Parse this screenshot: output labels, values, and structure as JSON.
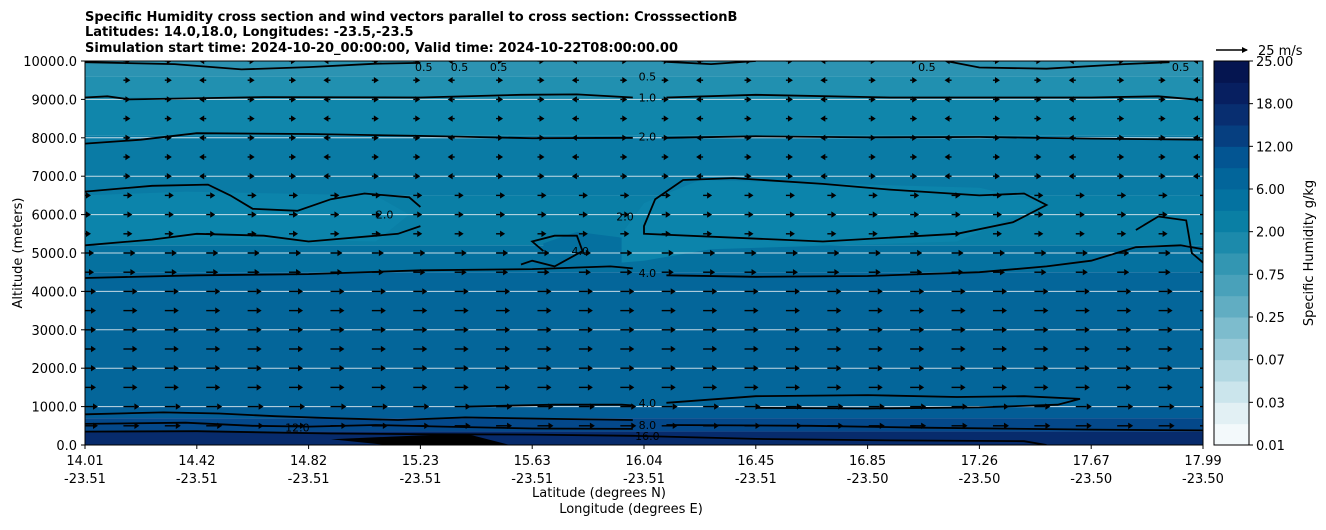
{
  "chart_data": {
    "type": "filled-contour",
    "title_lines": [
      "Specific Humidity cross section and wind vectors parallel to cross section: CrosssectionB",
      "Latitudes: 14.0,18.0, Longitudes: -23.5,-23.5",
      "Simulation start time: 2024-10-20_00:00:00, Valid time: 2024-10-22T08:00:00.00"
    ],
    "ylabel": "Altitude (meters)",
    "xlabel_lat": "Latitude (degrees N)",
    "xlabel_lon": "Longitude (degrees E)",
    "ylim": [
      0,
      10000
    ],
    "yticks": [
      0,
      1000,
      2000,
      3000,
      4000,
      5000,
      6000,
      7000,
      8000,
      9000,
      10000
    ],
    "ytick_labels": [
      "0.0",
      "1000.0",
      "2000.0",
      "3000.0",
      "4000.0",
      "5000.0",
      "6000.0",
      "7000.0",
      "8000.0",
      "9000.0",
      "10000.0"
    ],
    "xticks": [
      {
        "lat": "14.01",
        "lon": "-23.51"
      },
      {
        "lat": "14.42",
        "lon": "-23.51"
      },
      {
        "lat": "14.82",
        "lon": "-23.51"
      },
      {
        "lat": "15.23",
        "lon": "-23.51"
      },
      {
        "lat": "15.63",
        "lon": "-23.51"
      },
      {
        "lat": "16.04",
        "lon": "-23.51"
      },
      {
        "lat": "16.45",
        "lon": "-23.51"
      },
      {
        "lat": "16.85",
        "lon": "-23.50"
      },
      {
        "lat": "17.26",
        "lon": "-23.50"
      },
      {
        "lat": "17.67",
        "lon": "-23.50"
      },
      {
        "lat": "17.99",
        "lon": "-23.50"
      }
    ],
    "colorbar": {
      "label": "Specific Humidity g/kg",
      "levels": [
        0.01,
        0.02,
        0.03,
        0.05,
        0.07,
        0.1,
        0.25,
        0.5,
        0.75,
        1.0,
        2.0,
        4.0,
        6.0,
        8.0,
        12.0,
        15.0,
        18.0,
        20.0,
        25.0
      ],
      "tick_labels": [
        "0.01",
        "0.03",
        "0.07",
        "0.25",
        "0.75",
        "2.00",
        "6.00",
        "12.00",
        "18.00",
        "25.00"
      ]
    },
    "quiver_key": "25 m/s",
    "contour_lines": [
      0.5,
      1.0,
      2.0,
      4.0,
      8.0,
      12.0,
      16.0
    ],
    "contour_labels": [
      {
        "text": "0.5",
        "x": 0.303,
        "y": 9850
      },
      {
        "text": "0.5",
        "x": 0.335,
        "y": 9850
      },
      {
        "text": "0.5",
        "x": 0.37,
        "y": 9850
      },
      {
        "text": "0.5",
        "x": 0.503,
        "y": 9600
      },
      {
        "text": "0.5",
        "x": 0.753,
        "y": 9850
      },
      {
        "text": "0.5",
        "x": 0.98,
        "y": 9850
      },
      {
        "text": "1.0",
        "x": 0.503,
        "y": 9050
      },
      {
        "text": "2.0",
        "x": 0.503,
        "y": 8030
      },
      {
        "text": "2.0",
        "x": 0.268,
        "y": 6000
      },
      {
        "text": "2.0",
        "x": 0.483,
        "y": 5950
      },
      {
        "text": "4.0",
        "x": 0.443,
        "y": 5050
      },
      {
        "text": "4.0",
        "x": 0.503,
        "y": 4480
      },
      {
        "text": "4.0",
        "x": 0.503,
        "y": 1100
      },
      {
        "text": "12.0",
        "x": 0.19,
        "y": 450
      },
      {
        "text": "8.0",
        "x": 0.503,
        "y": 520
      },
      {
        "text": "16.0",
        "x": 0.503,
        "y": 230
      }
    ]
  }
}
